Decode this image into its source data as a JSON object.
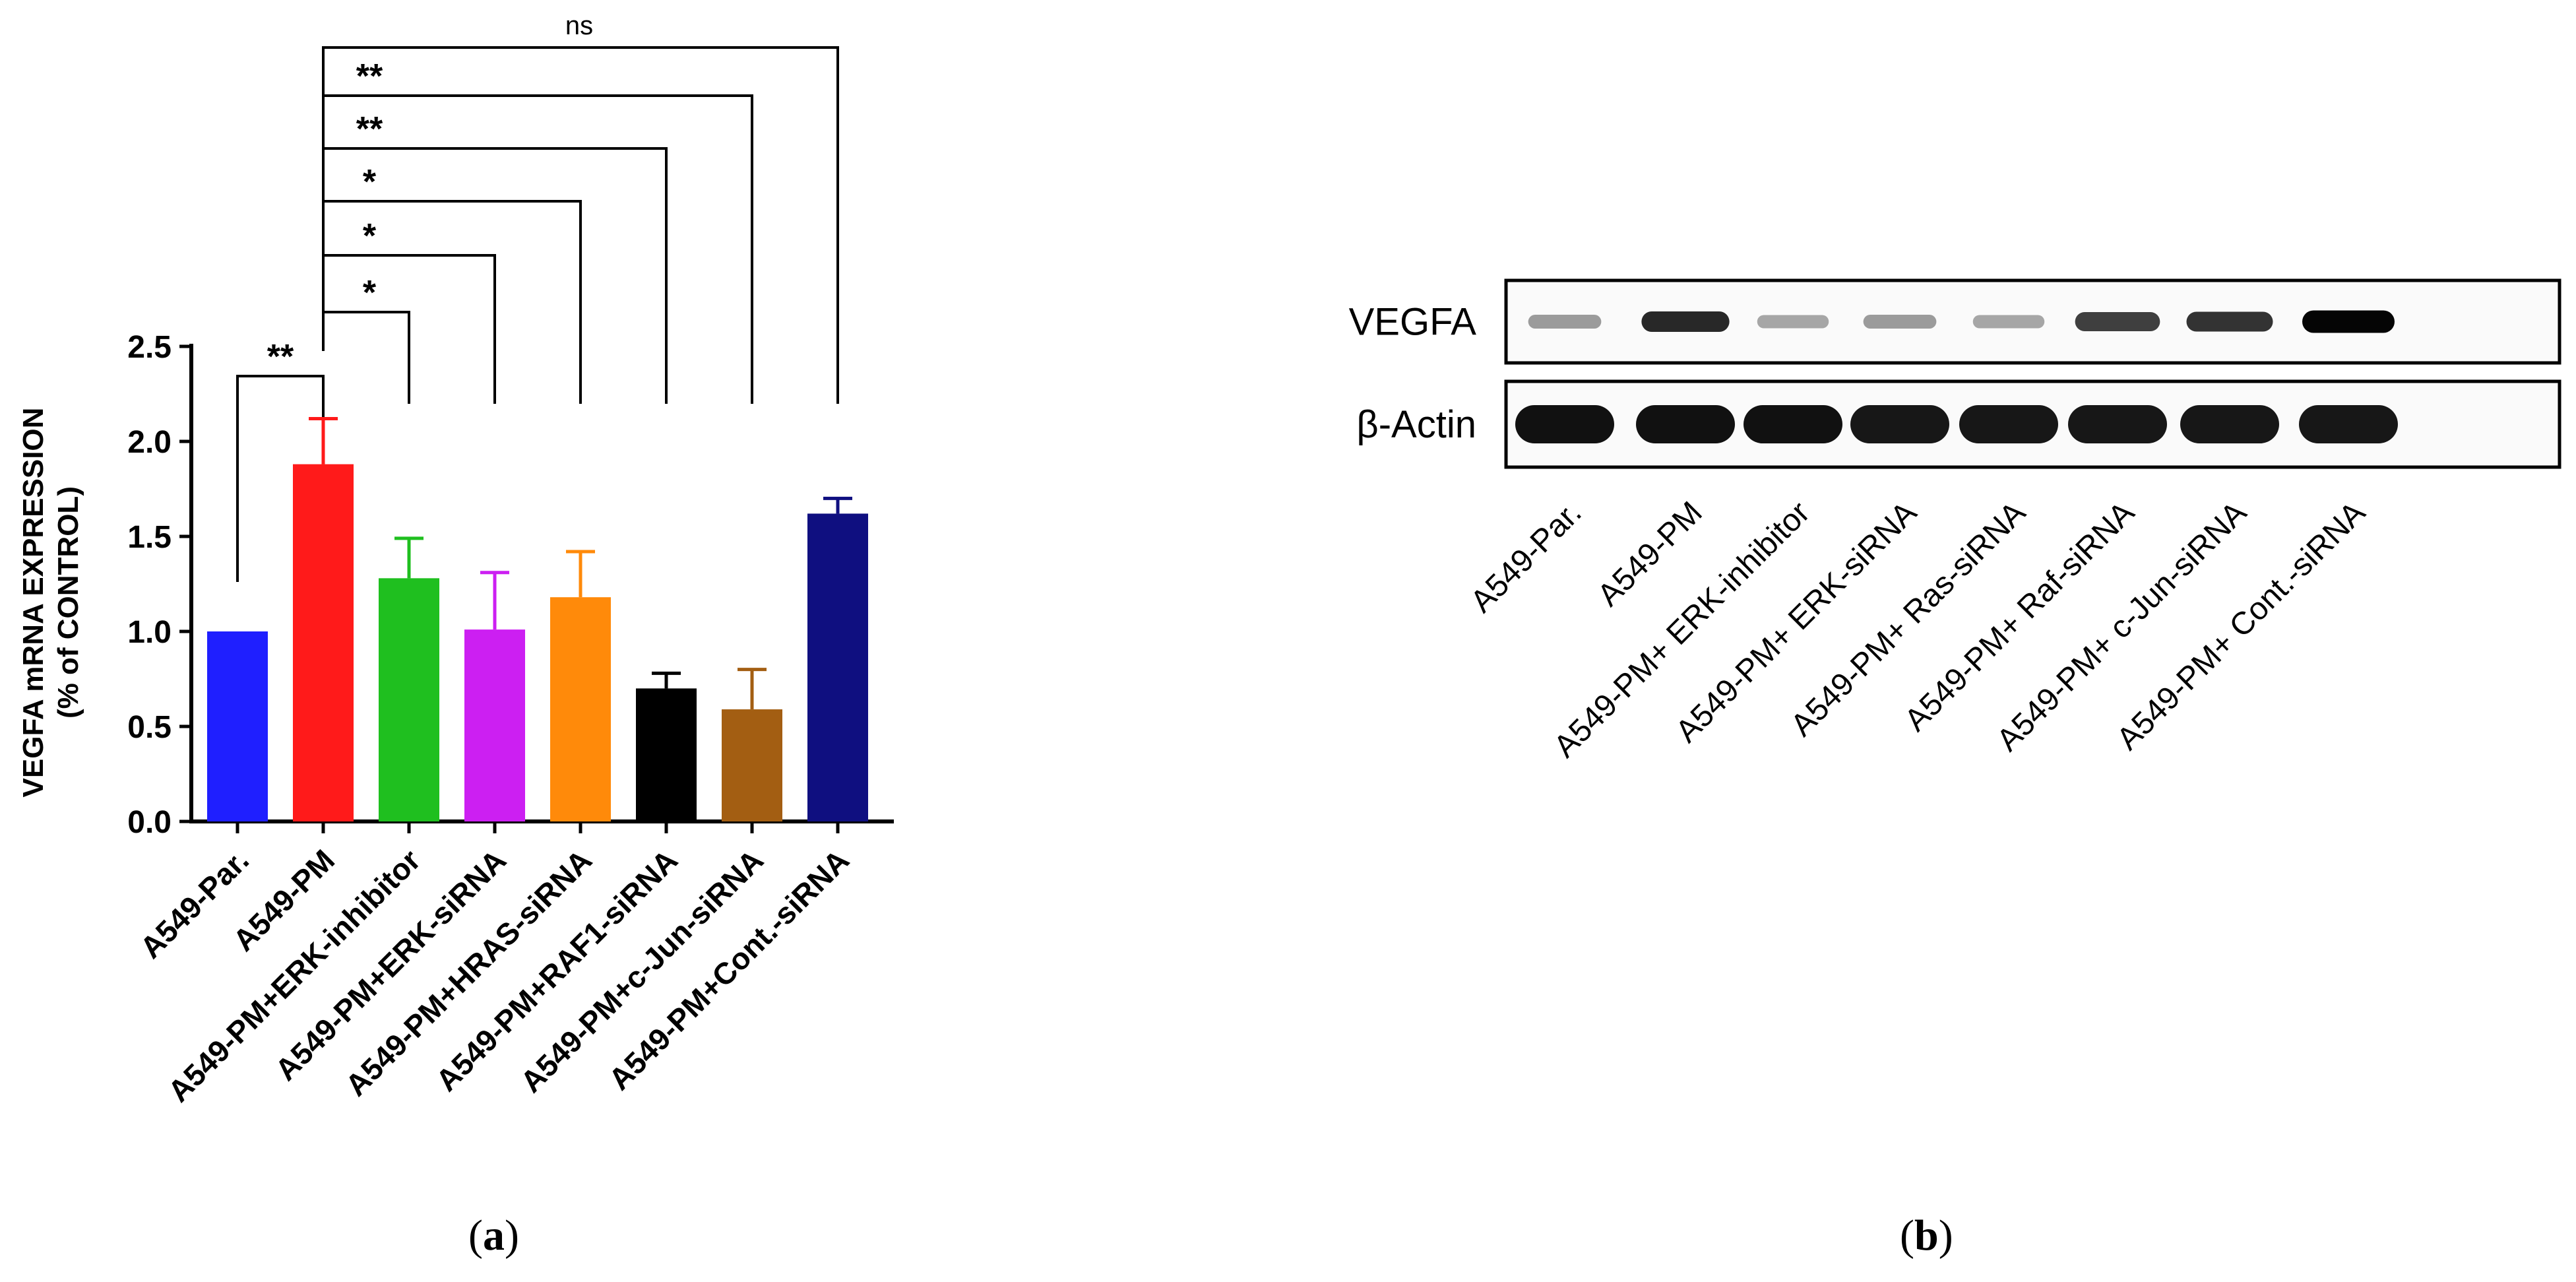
{
  "panel_labels": {
    "a_open": "(",
    "a_letter": "a",
    "a_close": ")",
    "b_open": "(",
    "b_letter": "b",
    "b_close": ")"
  },
  "chart_data": [
    {
      "type": "bar",
      "ylabel_line1": "VEGFA mRNA EXPRESSION",
      "ylabel_line2": "(% of CONTROL)",
      "ylim": [
        0,
        2.5
      ],
      "yticks": [
        "0.0",
        "0.5",
        "1.0",
        "1.5",
        "2.0",
        "2.5"
      ],
      "grid": false,
      "legend": "none",
      "categories": [
        "A549-Par.",
        "A549-PM",
        "A549-PM+ERK-inhibitor",
        "A549-PM+ERK-siRNA",
        "A549-PM+HRAS-siRNA",
        "A549-PM+RAF1-siRNA",
        "A549-PM+c-Jun-siRNA",
        "A549-PM+Cont.-siRNA"
      ],
      "values": [
        1.0,
        1.88,
        1.28,
        1.01,
        1.18,
        0.7,
        0.59,
        1.62
      ],
      "errors": [
        0.0,
        0.24,
        0.21,
        0.3,
        0.24,
        0.08,
        0.21,
        0.08
      ],
      "colors": [
        "#1f1fff",
        "#ff1a1a",
        "#1fbf1f",
        "#cc1ff2",
        "#ff8a0a",
        "#000000",
        "#a35e12",
        "#0f0f80"
      ],
      "significance": [
        {
          "from": 1,
          "to": 0,
          "label": "**"
        },
        {
          "from": 1,
          "to": 2,
          "label": "*"
        },
        {
          "from": 1,
          "to": 3,
          "label": "*"
        },
        {
          "from": 1,
          "to": 4,
          "label": "*"
        },
        {
          "from": 1,
          "to": 5,
          "label": "**"
        },
        {
          "from": 1,
          "to": 6,
          "label": "**"
        },
        {
          "from": 1,
          "to": 7,
          "label": "ns"
        }
      ]
    },
    {
      "type": "western-blot",
      "rows": [
        "VEGFA",
        "β-Actin"
      ],
      "lanes": [
        "A549-Par.",
        "A549-PM",
        "A549-PM+ ERK-inhibitor",
        "A549-PM+ ERK-siRNA",
        "A549-PM+ Ras-siRNA",
        "A549-PM+ Raf-siRNA",
        "A549-PM+ c-Jun-siRNA",
        "A549-PM+ Cont.-siRNA"
      ],
      "band_intensity": {
        "VEGFA": [
          0.35,
          0.85,
          0.3,
          0.35,
          0.3,
          0.75,
          0.8,
          1.0
        ],
        "β-Actin": [
          0.95,
          0.95,
          0.95,
          0.92,
          0.92,
          0.92,
          0.92,
          0.92
        ]
      }
    }
  ]
}
